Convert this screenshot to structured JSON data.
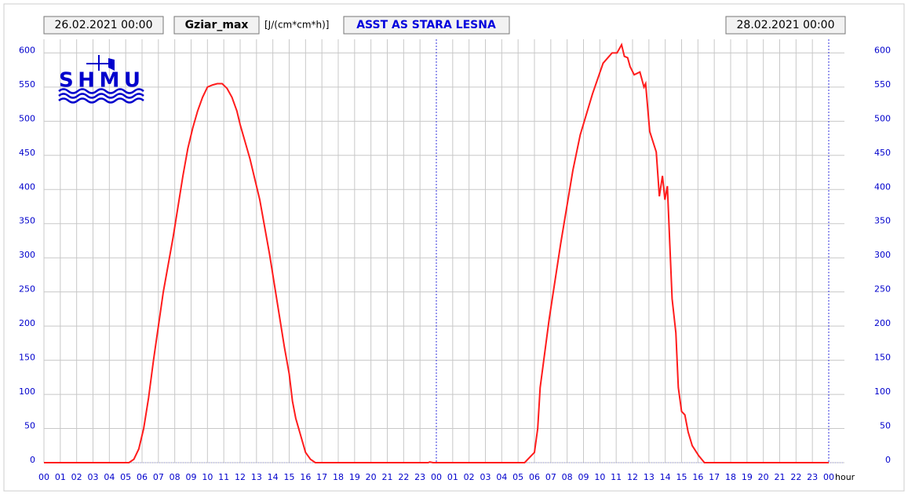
{
  "header": {
    "start": "26.02.2021 00:00",
    "parameter": "Gziar_max",
    "unit": "[J/(cm*cm*h)]",
    "station": "ASST AS STARA LESNA",
    "end": "28.02.2021 00:00"
  },
  "logo": "SHMU",
  "chart_data": {
    "type": "line",
    "x_label": "hour",
    "xlim": [
      0,
      48
    ],
    "ylim": [
      0,
      620
    ],
    "grid": true,
    "yticks": [
      0,
      50,
      100,
      150,
      200,
      250,
      300,
      350,
      400,
      450,
      500,
      550,
      600
    ],
    "xticks": [
      {
        "value": 0,
        "label": "00"
      },
      {
        "value": 1,
        "label": "01"
      },
      {
        "value": 2,
        "label": "02"
      },
      {
        "value": 3,
        "label": "03"
      },
      {
        "value": 4,
        "label": "04"
      },
      {
        "value": 5,
        "label": "05"
      },
      {
        "value": 6,
        "label": "06"
      },
      {
        "value": 7,
        "label": "07"
      },
      {
        "value": 8,
        "label": "08"
      },
      {
        "value": 9,
        "label": "09"
      },
      {
        "value": 10,
        "label": "10"
      },
      {
        "value": 11,
        "label": "11"
      },
      {
        "value": 12,
        "label": "12"
      },
      {
        "value": 13,
        "label": "13"
      },
      {
        "value": 14,
        "label": "14"
      },
      {
        "value": 15,
        "label": "15"
      },
      {
        "value": 16,
        "label": "16"
      },
      {
        "value": 17,
        "label": "17"
      },
      {
        "value": 18,
        "label": "18"
      },
      {
        "value": 19,
        "label": "19"
      },
      {
        "value": 20,
        "label": "20"
      },
      {
        "value": 21,
        "label": "21"
      },
      {
        "value": 22,
        "label": "22"
      },
      {
        "value": 23,
        "label": "23"
      },
      {
        "value": 24,
        "label": "00"
      },
      {
        "value": 25,
        "label": "01"
      },
      {
        "value": 26,
        "label": "02"
      },
      {
        "value": 27,
        "label": "03"
      },
      {
        "value": 28,
        "label": "04"
      },
      {
        "value": 29,
        "label": "05"
      },
      {
        "value": 30,
        "label": "06"
      },
      {
        "value": 31,
        "label": "07"
      },
      {
        "value": 32,
        "label": "08"
      },
      {
        "value": 33,
        "label": "09"
      },
      {
        "value": 34,
        "label": "10"
      },
      {
        "value": 35,
        "label": "11"
      },
      {
        "value": 36,
        "label": "12"
      },
      {
        "value": 37,
        "label": "13"
      },
      {
        "value": 38,
        "label": "14"
      },
      {
        "value": 39,
        "label": "15"
      },
      {
        "value": 40,
        "label": "16"
      },
      {
        "value": 41,
        "label": "17"
      },
      {
        "value": 42,
        "label": "18"
      },
      {
        "value": 43,
        "label": "19"
      },
      {
        "value": 44,
        "label": "20"
      },
      {
        "value": 45,
        "label": "21"
      },
      {
        "value": 46,
        "label": "22"
      },
      {
        "value": 47,
        "label": "23"
      },
      {
        "value": 48,
        "label": "00"
      }
    ],
    "x": [
      0,
      5.2,
      5.5,
      5.8,
      6.1,
      6.4,
      6.7,
      7.0,
      7.3,
      7.6,
      7.9,
      8.2,
      8.5,
      8.8,
      9.1,
      9.4,
      9.7,
      10.0,
      10.3,
      10.6,
      10.9,
      11.2,
      11.5,
      11.8,
      12.0,
      12.3,
      12.6,
      12.9,
      13.2,
      13.5,
      13.8,
      14.1,
      14.4,
      14.7,
      15.0,
      15.2,
      15.4,
      15.7,
      16.0,
      16.3,
      16.6,
      23.5,
      23.6,
      23.8,
      29.4,
      30.0,
      30.2,
      30.35,
      30.9,
      31.6,
      32.35,
      32.8,
      33.55,
      34.2,
      34.75,
      35.05,
      35.33,
      35.5,
      35.7,
      35.85,
      36.1,
      36.45,
      36.7,
      36.8,
      37.05,
      37.45,
      37.64,
      37.83,
      37.98,
      38.13,
      38.42,
      38.65,
      38.8,
      39.0,
      39.2,
      39.4,
      39.65,
      40.05,
      40.4,
      48
    ],
    "series": [
      {
        "name": "Gziar_max",
        "color": "#ff1c1c",
        "values": [
          0,
          0,
          5,
          20,
          50,
          95,
          150,
          200,
          250,
          290,
          330,
          375,
          420,
          460,
          490,
          515,
          535,
          550,
          553,
          555,
          555,
          548,
          535,
          515,
          495,
          470,
          445,
          415,
          385,
          345,
          305,
          260,
          215,
          170,
          130,
          90,
          65,
          40,
          15,
          5,
          0,
          0,
          1,
          0,
          0,
          15,
          50,
          110,
          210,
          320,
          428,
          480,
          540,
          585,
          600,
          600,
          612,
          595,
          593,
          580,
          568,
          572,
          550,
          555,
          485,
          455,
          390,
          420,
          385,
          405,
          240,
          190,
          110,
          75,
          70,
          45,
          25,
          10,
          0,
          0
        ]
      }
    ]
  }
}
